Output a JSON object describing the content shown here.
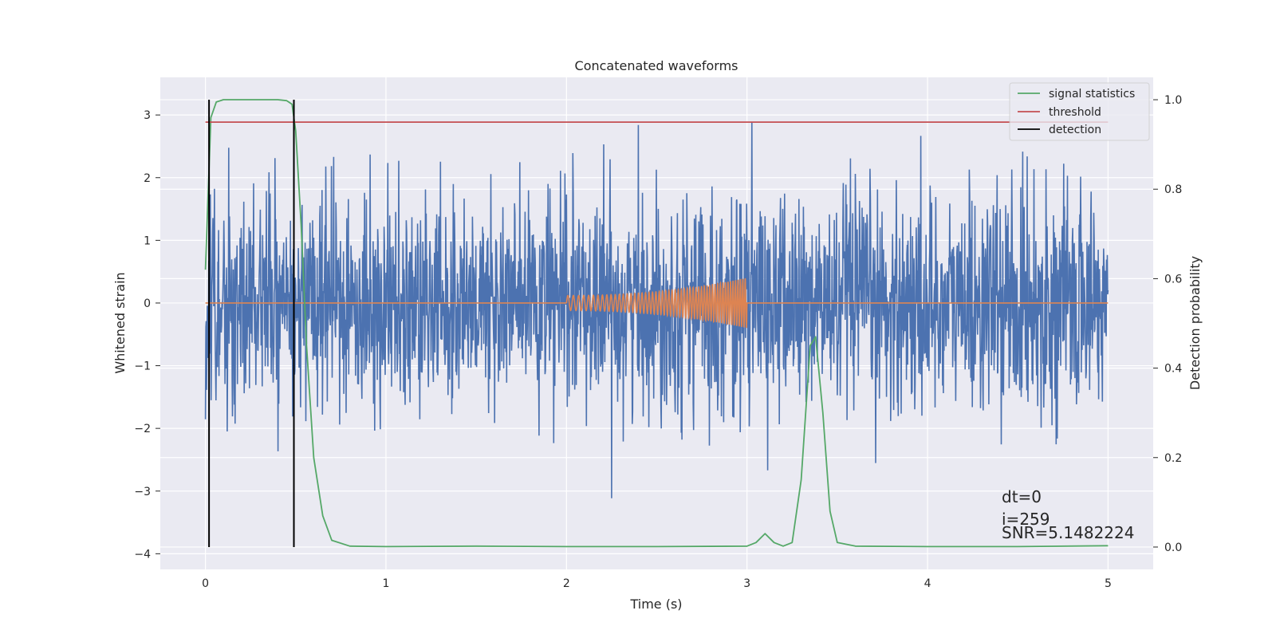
{
  "chart_data": {
    "type": "line",
    "title": "Concatenated waveforms",
    "xlabel": "Time (s)",
    "ylabel": "Whitened strain",
    "y2label": "Detection probability",
    "xlim": [
      -0.25,
      5.25
    ],
    "ylim": [
      -4.25,
      3.6
    ],
    "y2lim": [
      -0.05,
      1.05
    ],
    "xticks": [
      0,
      1,
      2,
      3,
      4,
      5
    ],
    "xtick_labels": [
      "0",
      "1",
      "2",
      "3",
      "4",
      "5"
    ],
    "yticks": [
      3,
      2,
      1,
      0,
      -1,
      -2,
      -3,
      -4
    ],
    "ytick_labels": [
      "3",
      "2",
      "1",
      "0",
      "−1",
      "−2",
      "−3",
      "−4"
    ],
    "y2ticks": [
      1.0,
      0.8,
      0.6,
      0.4,
      0.2,
      0.0
    ],
    "y2tick_labels": [
      "1.0",
      "0.8",
      "0.6",
      "0.4",
      "0.2",
      "0.0"
    ],
    "grid": true,
    "legend_position": "top-right",
    "colors": {
      "background": "#eaeaf2",
      "grid": "#ffffff",
      "noise": "#4c72b0",
      "waveform": "#dd8452",
      "statistics": "#55a868",
      "threshold": "#c44e52",
      "detection": "#000000"
    },
    "series": [
      {
        "name": "",
        "role": "noise",
        "description_values": {
          "x_start": 0,
          "x_end": 5,
          "amplitude_std": 0.85,
          "max": 3.28,
          "min": -3.9
        }
      },
      {
        "name": "",
        "role": "waveform",
        "x": [
          0,
          2,
          2,
          2.5,
          3,
          3,
          5
        ],
        "envelope": [
          0,
          0,
          0.12,
          0.2,
          0.4,
          0,
          0
        ],
        "chirp_start": 2,
        "chirp_end": 3
      },
      {
        "name": "signal statistics",
        "role": "statistics",
        "x": [
          0,
          0.03,
          0.06,
          0.1,
          0.2,
          0.3,
          0.4,
          0.45,
          0.48,
          0.5,
          0.53,
          0.56,
          0.6,
          0.65,
          0.7,
          0.8,
          1.0,
          1.5,
          2.0,
          2.5,
          3.0,
          3.05,
          3.1,
          3.15,
          3.2,
          3.25,
          3.3,
          3.35,
          3.38,
          3.42,
          3.46,
          3.5,
          3.6,
          4.0,
          4.5,
          5.0
        ],
        "values": [
          0.62,
          0.96,
          0.995,
          1.0,
          1.0,
          1.0,
          1.0,
          0.998,
          0.99,
          0.93,
          0.72,
          0.45,
          0.2,
          0.07,
          0.015,
          0.002,
          0.001,
          0.002,
          0.001,
          0.001,
          0.002,
          0.01,
          0.03,
          0.01,
          0.002,
          0.01,
          0.15,
          0.45,
          0.47,
          0.3,
          0.08,
          0.01,
          0.002,
          0.001,
          0.001,
          0.003
        ]
      },
      {
        "name": "threshold",
        "role": "threshold",
        "value": 0.95,
        "x": [
          0,
          5
        ]
      },
      {
        "name": "detection",
        "role": "detection",
        "x_positions": [
          0.02,
          0.49
        ],
        "y2_range": [
          0.0,
          1.0
        ]
      }
    ],
    "legend": [
      "signal statistics",
      "threshold",
      "detection"
    ],
    "annotations": [
      "dt=0",
      "i=259",
      "SNR=5.1482224"
    ]
  }
}
